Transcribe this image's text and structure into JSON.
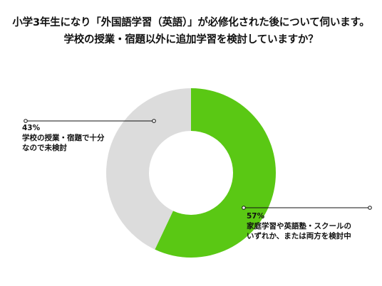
{
  "chart_data": {
    "type": "pie",
    "title": [
      "小学3年生になり「外国語学習（英語）」が必修化された後について伺います。",
      "学校の授業・宿題以外に追加学習を検討していますか？"
    ],
    "slices": [
      {
        "value": 57,
        "percent_label": "57%",
        "label_lines": [
          "家庭学習や英語塾・スクールの",
          "いずれか、または両方を検討中"
        ],
        "color": "#5ac814"
      },
      {
        "value": 43,
        "percent_label": "43%",
        "label_lines": [
          "学校の授業・宿題で十分",
          "なので未検討"
        ],
        "color": "#dcdcdc"
      }
    ],
    "start_angle": "12 o'clock",
    "direction": "clockwise",
    "donut": true
  }
}
